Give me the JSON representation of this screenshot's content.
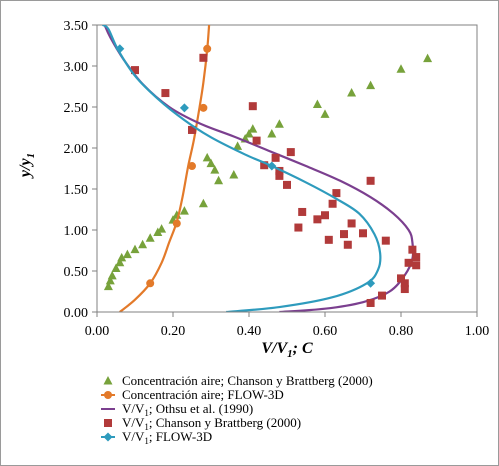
{
  "chart_data": {
    "type": "scatter",
    "xlabel": "V/V",
    "xlabel_sub": "1",
    "xlabel_tail": "; C",
    "ylabel": "y/y",
    "ylabel_sub": "1",
    "xlim": [
      0,
      1
    ],
    "ylim": [
      0,
      3.5
    ],
    "xticks": [
      "0.00",
      "0.20",
      "0.40",
      "0.60",
      "0.80",
      "1.00"
    ],
    "yticks": [
      "0.00",
      "0.50",
      "1.00",
      "1.50",
      "2.00",
      "2.50",
      "3.00",
      "3.50"
    ],
    "grid": false,
    "legend_position": "bottom",
    "series": [
      {
        "name": "Concentración aire; Chanson y Brattberg (2000)",
        "kind": "markers",
        "marker": "triangle",
        "color": "#77a23b",
        "points": [
          [
            0.03,
            0.31
          ],
          [
            0.035,
            0.38
          ],
          [
            0.04,
            0.44
          ],
          [
            0.05,
            0.53
          ],
          [
            0.06,
            0.6
          ],
          [
            0.065,
            0.66
          ],
          [
            0.08,
            0.7
          ],
          [
            0.1,
            0.76
          ],
          [
            0.12,
            0.82
          ],
          [
            0.14,
            0.9
          ],
          [
            0.16,
            0.97
          ],
          [
            0.17,
            1.01
          ],
          [
            0.2,
            1.12
          ],
          [
            0.21,
            1.18
          ],
          [
            0.23,
            1.23
          ],
          [
            0.28,
            1.32
          ],
          [
            0.29,
            1.88
          ],
          [
            0.3,
            1.81
          ],
          [
            0.31,
            1.73
          ],
          [
            0.32,
            1.6
          ],
          [
            0.36,
            1.67
          ],
          [
            0.37,
            2.02
          ],
          [
            0.39,
            2.11
          ],
          [
            0.4,
            2.17
          ],
          [
            0.41,
            2.23
          ],
          [
            0.46,
            2.17
          ],
          [
            0.48,
            2.29
          ],
          [
            0.58,
            2.53
          ],
          [
            0.6,
            2.41
          ],
          [
            0.67,
            2.67
          ],
          [
            0.72,
            2.76
          ],
          [
            0.8,
            2.96
          ],
          [
            0.87,
            3.09
          ]
        ]
      },
      {
        "name": "Concentración aire; FLOW-3D",
        "kind": "curve",
        "marker": "circle",
        "color": "#e37a2a",
        "curve": [
          [
            0.06,
            0.0
          ],
          [
            0.1,
            0.15
          ],
          [
            0.14,
            0.35
          ],
          [
            0.17,
            0.6
          ],
          [
            0.19,
            0.85
          ],
          [
            0.21,
            1.1
          ],
          [
            0.225,
            1.4
          ],
          [
            0.24,
            1.78
          ],
          [
            0.255,
            2.1
          ],
          [
            0.27,
            2.5
          ],
          [
            0.28,
            2.8
          ],
          [
            0.29,
            3.2
          ],
          [
            0.295,
            3.5
          ]
        ],
        "points": [
          [
            0.14,
            0.35
          ],
          [
            0.21,
            1.08
          ],
          [
            0.25,
            1.78
          ],
          [
            0.28,
            2.49
          ],
          [
            0.29,
            3.21
          ]
        ]
      },
      {
        "name": "V/V1; Othsu et al. (1990)",
        "kind": "curve",
        "color": "#7b3f8f",
        "curve": [
          [
            0.48,
            0.0
          ],
          [
            0.6,
            0.04
          ],
          [
            0.7,
            0.12
          ],
          [
            0.77,
            0.25
          ],
          [
            0.81,
            0.45
          ],
          [
            0.83,
            0.65
          ],
          [
            0.83,
            0.85
          ],
          [
            0.82,
            1.0
          ],
          [
            0.78,
            1.2
          ],
          [
            0.72,
            1.4
          ],
          [
            0.64,
            1.6
          ],
          [
            0.55,
            1.78
          ],
          [
            0.45,
            1.97
          ],
          [
            0.36,
            2.14
          ],
          [
            0.27,
            2.3
          ],
          [
            0.19,
            2.5
          ],
          [
            0.12,
            2.78
          ],
          [
            0.07,
            3.08
          ],
          [
            0.035,
            3.35
          ],
          [
            0.02,
            3.5
          ]
        ]
      },
      {
        "name": "V/V1; Chanson y Brattberg (2000)",
        "kind": "markers",
        "marker": "square",
        "color": "#b13a3a",
        "points": [
          [
            0.1,
            2.95
          ],
          [
            0.18,
            2.67
          ],
          [
            0.25,
            2.22
          ],
          [
            0.28,
            3.1
          ],
          [
            0.41,
            2.51
          ],
          [
            0.42,
            2.09
          ],
          [
            0.44,
            1.79
          ],
          [
            0.47,
            1.88
          ],
          [
            0.48,
            1.72
          ],
          [
            0.48,
            1.66
          ],
          [
            0.5,
            1.55
          ],
          [
            0.51,
            1.95
          ],
          [
            0.53,
            1.03
          ],
          [
            0.54,
            1.22
          ],
          [
            0.58,
            1.13
          ],
          [
            0.6,
            1.18
          ],
          [
            0.61,
            0.88
          ],
          [
            0.62,
            1.32
          ],
          [
            0.63,
            1.45
          ],
          [
            0.65,
            0.95
          ],
          [
            0.66,
            0.82
          ],
          [
            0.67,
            1.08
          ],
          [
            0.7,
            0.96
          ],
          [
            0.72,
            0.11
          ],
          [
            0.72,
            1.6
          ],
          [
            0.75,
            0.2
          ],
          [
            0.76,
            0.87
          ],
          [
            0.8,
            0.41
          ],
          [
            0.81,
            0.28
          ],
          [
            0.81,
            0.35
          ],
          [
            0.82,
            0.6
          ],
          [
            0.83,
            0.76
          ],
          [
            0.84,
            0.67
          ],
          [
            0.84,
            0.57
          ]
        ]
      },
      {
        "name": "V/V1; FLOW-3D",
        "kind": "curve",
        "marker": "diamond",
        "color": "#2e9bbd",
        "curve": [
          [
            0.34,
            0.0
          ],
          [
            0.48,
            0.06
          ],
          [
            0.62,
            0.18
          ],
          [
            0.71,
            0.35
          ],
          [
            0.74,
            0.52
          ],
          [
            0.745,
            0.72
          ],
          [
            0.73,
            0.95
          ],
          [
            0.69,
            1.2
          ],
          [
            0.63,
            1.38
          ],
          [
            0.55,
            1.58
          ],
          [
            0.46,
            1.78
          ],
          [
            0.39,
            1.92
          ],
          [
            0.3,
            2.13
          ],
          [
            0.23,
            2.34
          ],
          [
            0.16,
            2.6
          ],
          [
            0.1,
            2.88
          ],
          [
            0.055,
            3.2
          ],
          [
            0.03,
            3.45
          ],
          [
            0.015,
            3.5
          ]
        ],
        "points": [
          [
            0.72,
            0.35
          ],
          [
            0.46,
            1.78
          ],
          [
            0.23,
            2.49
          ],
          [
            0.06,
            3.21
          ]
        ]
      }
    ]
  },
  "legend": [
    {
      "marker": "triangle",
      "color": "#77a23b",
      "line": false,
      "label": "Concentración aire; Chanson y Brattberg (2000)"
    },
    {
      "marker": "circle",
      "color": "#e37a2a",
      "line": true,
      "label": "Concentración aire; FLOW-3D"
    },
    {
      "marker": "none",
      "color": "#7b3f8f",
      "line": true,
      "label": "V/V",
      "sub": "1",
      "tail": "; Othsu et al. (1990)"
    },
    {
      "marker": "square",
      "color": "#b13a3a",
      "line": false,
      "label": "V/V",
      "sub": "1",
      "tail": "; Chanson y Brattberg (2000)"
    },
    {
      "marker": "diamond",
      "color": "#2e9bbd",
      "line": true,
      "label": "V/V",
      "sub": "1",
      "tail": "; FLOW-3D"
    }
  ]
}
